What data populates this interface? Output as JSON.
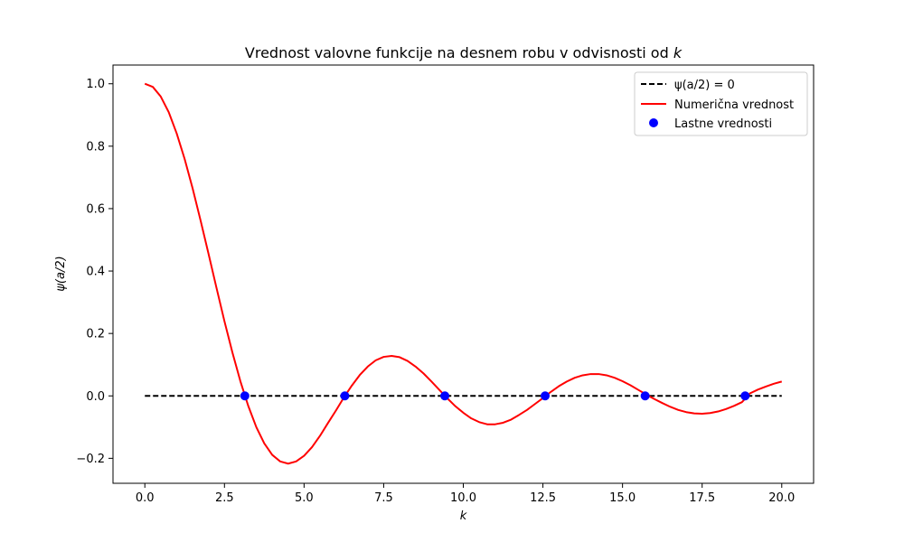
{
  "chart_data": {
    "type": "line",
    "title": "Vrednost valovne funkcije na desnem robu v odvisnosti od k",
    "title_parts": {
      "prefix": "Vrednost valovne funkcije na desnem robu v odvisnosti od ",
      "variable": "k"
    },
    "xlabel": "k",
    "ylabel": "ψ(a/2)",
    "xlim": [
      -1.0,
      21.0
    ],
    "ylim": [
      -0.28,
      1.06
    ],
    "x_ticks": [
      0.0,
      2.5,
      5.0,
      7.5,
      10.0,
      12.5,
      15.0,
      17.5,
      20.0
    ],
    "x_tick_labels": [
      "0.0",
      "2.5",
      "5.0",
      "7.5",
      "10.0",
      "12.5",
      "15.0",
      "17.5",
      "20.0"
    ],
    "y_ticks": [
      -0.2,
      0.0,
      0.2,
      0.4,
      0.6,
      0.8,
      1.0
    ],
    "y_tick_labels": [
      "−0.2",
      "0.0",
      "0.2",
      "0.4",
      "0.6",
      "0.8",
      "1.0"
    ],
    "grid": false,
    "legend_position": "top-right",
    "legend": [
      "ψ(a/2) = 0",
      "Numerična vrednost",
      "Lastne vrednosti"
    ],
    "series": [
      {
        "name": "ψ(a/2) = 0",
        "style": "dashed",
        "color": "#000000",
        "x": [
          0.0,
          20.0
        ],
        "y": [
          0.0,
          0.0
        ]
      },
      {
        "name": "Numerična vrednost",
        "style": "solid",
        "color": "#ff0000",
        "x": [
          0.0,
          0.25,
          0.5,
          0.75,
          1.0,
          1.25,
          1.5,
          1.75,
          2.0,
          2.25,
          2.5,
          2.75,
          3.0,
          3.25,
          3.5,
          3.75,
          4.0,
          4.25,
          4.5,
          4.75,
          5.0,
          5.25,
          5.5,
          5.75,
          6.0,
          6.25,
          6.5,
          6.75,
          7.0,
          7.25,
          7.5,
          7.75,
          8.0,
          8.25,
          8.5,
          8.75,
          9.0,
          9.25,
          9.5,
          9.75,
          10.0,
          10.25,
          10.5,
          10.75,
          11.0,
          11.25,
          11.5,
          11.75,
          12.0,
          12.25,
          12.5,
          12.75,
          13.0,
          13.25,
          13.5,
          13.75,
          14.0,
          14.25,
          14.5,
          14.75,
          15.0,
          15.25,
          15.5,
          15.75,
          16.0,
          16.25,
          16.5,
          16.75,
          17.0,
          17.25,
          17.5,
          17.75,
          18.0,
          18.25,
          18.5,
          18.75,
          19.0,
          19.25,
          19.5,
          19.75,
          20.0
        ],
        "y": [
          1.0,
          0.99,
          0.959,
          0.909,
          0.841,
          0.759,
          0.665,
          0.562,
          0.455,
          0.346,
          0.239,
          0.139,
          0.047,
          -0.033,
          -0.1,
          -0.152,
          -0.189,
          -0.21,
          -0.217,
          -0.21,
          -0.192,
          -0.164,
          -0.128,
          -0.087,
          -0.047,
          -0.005,
          0.033,
          0.067,
          0.094,
          0.114,
          0.125,
          0.128,
          0.124,
          0.112,
          0.094,
          0.072,
          0.046,
          0.019,
          -0.008,
          -0.033,
          -0.054,
          -0.072,
          -0.084,
          -0.091,
          -0.091,
          -0.086,
          -0.076,
          -0.061,
          -0.045,
          -0.026,
          -0.007,
          0.013,
          0.031,
          0.046,
          0.058,
          0.066,
          0.07,
          0.07,
          0.066,
          0.058,
          0.047,
          0.034,
          0.019,
          0.004,
          -0.01,
          -0.023,
          -0.035,
          -0.045,
          -0.052,
          -0.056,
          -0.057,
          -0.055,
          -0.05,
          -0.042,
          -0.032,
          -0.02,
          0.008,
          0.02,
          0.03,
          0.039,
          0.046
        ]
      },
      {
        "name": "Lastne vrednosti",
        "style": "scatter",
        "color": "#0000ff",
        "x": [
          3.14,
          6.28,
          9.42,
          12.57,
          15.71,
          18.85
        ],
        "y": [
          0.0,
          0.0,
          0.0,
          0.0,
          0.0,
          0.0
        ]
      }
    ]
  }
}
